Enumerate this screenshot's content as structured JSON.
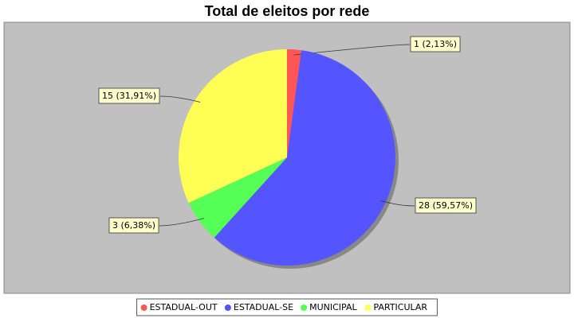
{
  "chart_data": {
    "type": "pie",
    "title": "Total de eleitos por rede",
    "categories": [
      "ESTADUAL-OUT",
      "ESTADUAL-SE",
      "MUNICIPAL",
      "PARTICULAR"
    ],
    "values": [
      1,
      28,
      3,
      15
    ],
    "value_labels": [
      "1 (2,13%)",
      "28 (59,57%)",
      "3 (6,38%)",
      "15 (31,91%)"
    ],
    "colors": [
      "#ff5555",
      "#5555ff",
      "#55ff55",
      "#ffff55"
    ],
    "legend": "bottom"
  }
}
